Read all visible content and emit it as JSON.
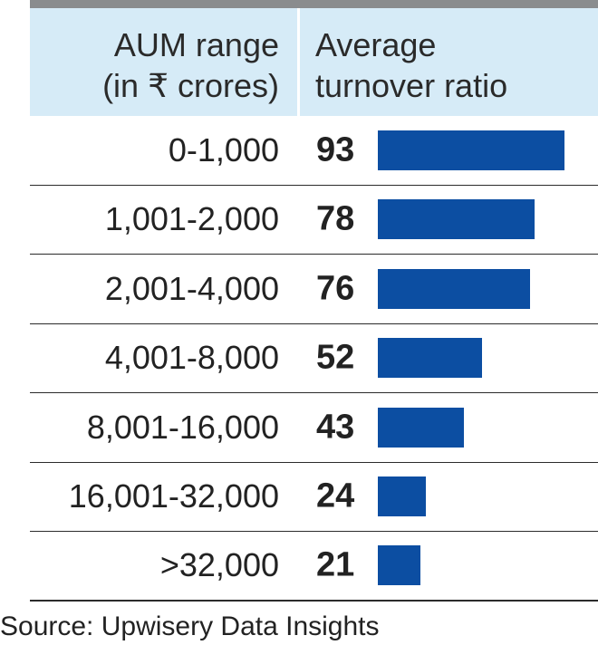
{
  "chart_data": {
    "type": "table",
    "columns": [
      [
        "AUM range",
        "(in ₹ crores)"
      ],
      [
        "Average",
        "turnover ratio"
      ]
    ],
    "categories": [
      "0-1,000",
      "1,001-2,000",
      "2,001-4,000",
      "4,001-8,000",
      "8,001-16,000",
      "16,001-32,000",
      ">32,000"
    ],
    "values": [
      93,
      78,
      76,
      52,
      43,
      24,
      21
    ],
    "bar_max": 93,
    "bar_color": "#0c4ea2",
    "header_bg": "#d6ebf7",
    "top_rule_color": "#8a8c8e"
  },
  "source": "Source: Upwisery Data Insights"
}
